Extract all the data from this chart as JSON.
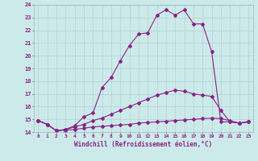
{
  "xlabel": "Windchill (Refroidissement éolien,°C)",
  "background_color": "#cdeaea",
  "line_color": "#882288",
  "xlim": [
    -0.5,
    23.5
  ],
  "ylim": [
    14,
    24
  ],
  "yticks": [
    14,
    15,
    16,
    17,
    18,
    19,
    20,
    21,
    22,
    23,
    24
  ],
  "xticks": [
    0,
    1,
    2,
    3,
    4,
    5,
    6,
    7,
    8,
    9,
    10,
    11,
    12,
    13,
    14,
    15,
    16,
    17,
    18,
    19,
    20,
    21,
    22,
    23
  ],
  "line1_x": [
    0,
    1,
    2,
    3,
    4,
    5,
    6,
    7,
    8,
    9,
    10,
    11,
    12,
    13,
    14,
    15,
    16,
    17,
    18,
    19,
    20,
    21,
    22,
    23
  ],
  "line1_y": [
    14.9,
    14.6,
    14.1,
    14.2,
    14.5,
    15.2,
    15.5,
    17.5,
    18.3,
    19.6,
    20.8,
    21.7,
    21.8,
    23.2,
    23.6,
    23.2,
    23.6,
    22.5,
    22.5,
    20.3,
    14.8,
    14.8,
    14.7,
    14.8
  ],
  "line2_x": [
    0,
    1,
    2,
    3,
    4,
    5,
    6,
    7,
    8,
    9,
    10,
    11,
    12,
    13,
    14,
    15,
    16,
    17,
    18,
    19,
    20,
    21,
    22,
    23
  ],
  "line2_y": [
    14.9,
    14.6,
    14.1,
    14.2,
    14.4,
    14.6,
    14.9,
    15.1,
    15.4,
    15.7,
    16.0,
    16.3,
    16.6,
    16.9,
    17.1,
    17.3,
    17.2,
    17.0,
    16.9,
    16.8,
    15.7,
    14.8,
    14.7,
    14.8
  ],
  "line3_x": [
    0,
    1,
    2,
    3,
    4,
    5,
    6,
    7,
    8,
    9,
    10,
    11,
    12,
    13,
    14,
    15,
    16,
    17,
    18,
    19,
    20,
    21,
    22,
    23
  ],
  "line3_y": [
    14.9,
    14.6,
    14.1,
    14.15,
    14.2,
    14.3,
    14.4,
    14.45,
    14.5,
    14.55,
    14.6,
    14.7,
    14.75,
    14.8,
    14.85,
    14.9,
    14.95,
    15.0,
    15.05,
    15.1,
    15.05,
    14.9,
    14.7,
    14.8
  ]
}
